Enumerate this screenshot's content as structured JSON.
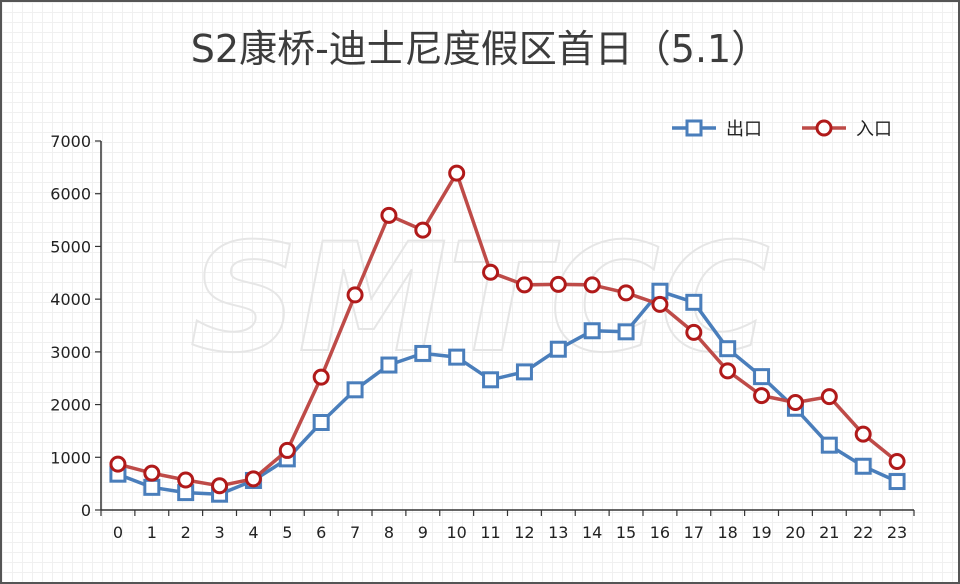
{
  "chart_data": {
    "type": "line",
    "title": "S2康桥-迪士尼度假区首日（5.1）",
    "watermark": "SMTCC",
    "x": [
      "0",
      "1",
      "2",
      "3",
      "4",
      "5",
      "6",
      "7",
      "8",
      "9",
      "10",
      "11",
      "12",
      "13",
      "14",
      "15",
      "16",
      "17",
      "18",
      "19",
      "20",
      "21",
      "22",
      "23"
    ],
    "ylim": [
      0,
      7000
    ],
    "yticks": [
      0,
      1000,
      2000,
      3000,
      4000,
      5000,
      6000,
      7000
    ],
    "legend_position": "top-right",
    "series": [
      {
        "name": "出口",
        "color": "#4a7ebb",
        "marker": "square",
        "values": [
          680,
          430,
          330,
          300,
          560,
          970,
          1660,
          2280,
          2750,
          2970,
          2900,
          2470,
          2620,
          3050,
          3400,
          3380,
          4150,
          3940,
          3060,
          2530,
          1930,
          1230,
          830,
          540
        ]
      },
      {
        "name": "入口",
        "color": "#be4b48",
        "marker": "circle",
        "values": [
          870,
          700,
          570,
          460,
          590,
          1130,
          2520,
          4080,
          5590,
          5310,
          6390,
          4510,
          4270,
          4280,
          4270,
          4120,
          3900,
          3370,
          2640,
          2170,
          2040,
          2150,
          1440,
          920
        ]
      }
    ]
  }
}
